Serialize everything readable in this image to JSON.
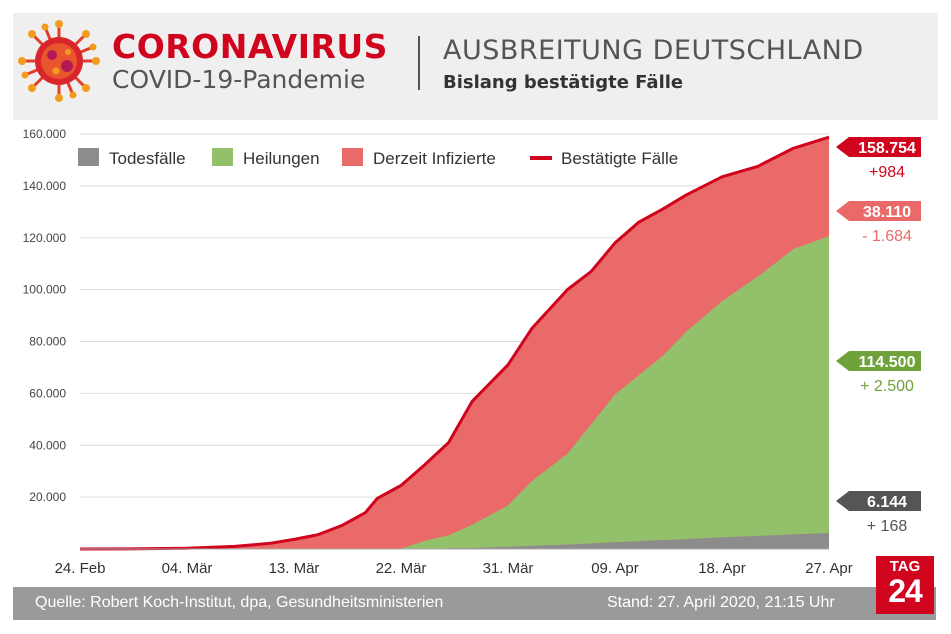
{
  "header": {
    "title": "CORONAVIRUS",
    "subtitle": "COVID-19-Pandemie",
    "right_title": "AUSBREITUNG DEUTSCHLAND",
    "right_subtitle": "Bislang bestätigte Fälle"
  },
  "footer": {
    "source": "Quelle: Robert Koch-Institut, dpa, Gesundheitsministerien",
    "date": "Stand: 27. April 2020, 21:15 Uhr"
  },
  "logo": {
    "top": "TAG",
    "bottom": "24"
  },
  "colors": {
    "brand_red": "#d0041c",
    "infected": "#e96a68",
    "recovered": "#92c06b",
    "deaths": "#8c8c8c",
    "confirmed_line": "#d0041c",
    "label_deaths_bg": "#555555",
    "label_recovered_bg": "#6fa23a",
    "label_deaths_delta": "#555555",
    "label_recovered_delta": "#6fa23a"
  },
  "chart_data": {
    "type": "area",
    "x_tick_labels": [
      "24. Feb",
      "04. Mär",
      "13. Mär",
      "22. Mär",
      "31. Mär",
      "09. Apr",
      "18. Apr",
      "27. Apr"
    ],
    "x_start_label": "24. Feb",
    "x_end_label": "27. Apr",
    "y_ticks": [
      20000,
      40000,
      60000,
      80000,
      100000,
      120000,
      140000,
      160000
    ],
    "y_tick_labels": [
      "20.000",
      "40.000",
      "60.000",
      "80.000",
      "100.000",
      "120.000",
      "140.000",
      "160.000"
    ],
    "ylim": [
      0,
      160000
    ],
    "grid": true,
    "legend_position": "top-left",
    "legend": [
      {
        "name": "Todesfälle",
        "symbol": "square",
        "color": "#8c8c8c"
      },
      {
        "name": "Heilungen",
        "symbol": "square",
        "color": "#92c06b"
      },
      {
        "name": "Derzeit Infizierte",
        "symbol": "square",
        "color": "#e96a68"
      },
      {
        "name": "Bestätigte Fälle",
        "symbol": "line",
        "color": "#d0041c"
      }
    ],
    "dates": [
      "24. Feb",
      "28. Feb",
      "04. Mär",
      "08. Mär",
      "11. Mär",
      "13. Mär",
      "15. Mär",
      "17. Mär",
      "19. Mär",
      "20. Mär",
      "22. Mär",
      "24. Mär",
      "26. Mär",
      "28. Mär",
      "31. Mär",
      "02. Apr",
      "05. Apr",
      "07. Apr",
      "09. Apr",
      "11. Apr",
      "13. Apr",
      "15. Apr",
      "18. Apr",
      "21. Apr",
      "24. Apr",
      "27. Apr"
    ],
    "series": [
      {
        "name": "Bestätigte Fälle",
        "type": "line",
        "values": [
          20,
          60,
          300,
          1000,
          2200,
          3700,
          5500,
          9000,
          14000,
          19500,
          24500,
          32500,
          41000,
          57000,
          71000,
          85000,
          100000,
          107000,
          118000,
          126000,
          131000,
          136500,
          143500,
          147500,
          154500,
          158754
        ]
      },
      {
        "name": "Heilungen",
        "type": "area",
        "values": [
          0,
          0,
          0,
          0,
          0,
          0,
          0,
          0,
          0,
          0,
          0,
          3000,
          5000,
          9000,
          16000,
          25000,
          35000,
          46000,
          57000,
          64000,
          71000,
          80000,
          91000,
          100000,
          110000,
          114500
        ]
      },
      {
        "name": "Todesfälle",
        "type": "area",
        "values": [
          0,
          0,
          0,
          0,
          5,
          10,
          15,
          25,
          45,
          70,
          95,
          150,
          250,
          400,
          800,
          1200,
          1700,
          2100,
          2600,
          3000,
          3400,
          3800,
          4500,
          5000,
          5600,
          6144
        ]
      }
    ],
    "end_labels": [
      {
        "series": "Bestätigte Fälle",
        "value": "158.754",
        "delta": "+984"
      },
      {
        "series": "Derzeit Infizierte",
        "value": "38.110",
        "delta": "- 1.684"
      },
      {
        "series": "Heilungen",
        "value": "114.500",
        "delta": "+ 2.500"
      },
      {
        "series": "Todesfälle",
        "value": "6.144",
        "delta": "+ 168"
      }
    ]
  }
}
